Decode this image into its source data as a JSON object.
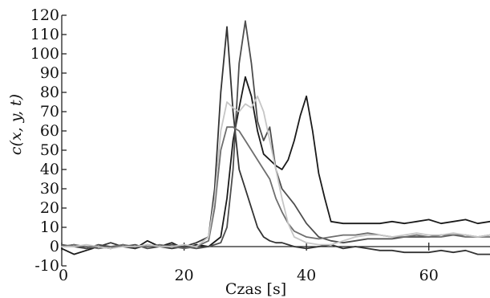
{
  "chart_data": {
    "type": "line",
    "xlabel": "Czas [s]",
    "ylabel": "c(x, y, t)",
    "xlim": [
      0,
      70
    ],
    "ylim": [
      -10,
      120
    ],
    "x_ticks": [
      0,
      20,
      40,
      60
    ],
    "y_ticks": [
      -10,
      0,
      10,
      20,
      30,
      40,
      50,
      60,
      70,
      80,
      90,
      100,
      110,
      120
    ],
    "grid": false,
    "legend": "none",
    "series": [
      {
        "color": "#1a1a1a",
        "x": [
          0,
          2,
          4,
          6,
          8,
          10,
          12,
          14,
          16,
          18,
          20,
          22,
          24,
          26,
          27,
          28,
          29,
          30,
          31,
          32,
          33,
          34,
          35,
          36,
          37,
          38,
          39,
          40,
          41,
          42,
          43,
          44,
          46,
          48,
          50,
          52,
          54,
          56,
          58,
          60,
          62,
          64,
          66,
          68,
          70
        ],
        "y": [
          -1,
          -4,
          -2,
          0,
          -1,
          1,
          -1,
          3,
          0,
          2,
          -1,
          1,
          0,
          5,
          25,
          55,
          72,
          88,
          78,
          60,
          48,
          45,
          42,
          40,
          45,
          55,
          68,
          78,
          60,
          38,
          25,
          13,
          12,
          12,
          12,
          12,
          13,
          12,
          13,
          14,
          12,
          13,
          14,
          12,
          13
        ]
      },
      {
        "color": "#333333",
        "x": [
          0,
          2,
          4,
          6,
          8,
          10,
          12,
          14,
          16,
          18,
          20,
          22,
          24,
          25,
          26,
          27,
          28,
          29,
          30,
          31,
          32,
          33,
          34,
          35,
          36,
          37,
          38,
          40,
          42,
          44,
          46,
          48,
          50,
          52,
          54,
          56,
          58,
          60,
          62,
          64,
          66,
          68,
          70
        ],
        "y": [
          0,
          1,
          -1,
          0,
          2,
          0,
          -1,
          1,
          0,
          -1,
          0,
          2,
          5,
          30,
          80,
          114,
          70,
          40,
          30,
          20,
          10,
          5,
          3,
          2,
          2,
          1,
          0,
          -1,
          0,
          1,
          -1,
          0,
          -1,
          -2,
          -2,
          -3,
          -3,
          -3,
          -2,
          -3,
          -2,
          -4,
          -4
        ]
      },
      {
        "color": "#4d4d4d",
        "x": [
          0,
          2,
          4,
          6,
          8,
          10,
          12,
          14,
          16,
          18,
          20,
          22,
          24,
          26,
          27,
          28,
          29,
          30,
          31,
          32,
          33,
          34,
          35,
          36,
          38,
          40,
          42,
          44,
          46,
          48,
          50,
          52,
          54,
          56,
          58,
          60,
          62,
          64,
          66,
          68,
          70
        ],
        "y": [
          1,
          0,
          -1,
          1,
          0,
          0,
          1,
          -1,
          0,
          1,
          0,
          -1,
          0,
          2,
          10,
          40,
          95,
          117,
          95,
          65,
          55,
          62,
          40,
          30,
          22,
          12,
          5,
          3,
          2,
          3,
          4,
          4,
          4,
          5,
          5,
          5,
          6,
          6,
          6,
          5,
          6
        ]
      },
      {
        "color": "#6e6e6e",
        "x": [
          0,
          2,
          4,
          6,
          8,
          10,
          12,
          14,
          16,
          18,
          20,
          22,
          24,
          25,
          26,
          27,
          28,
          29,
          30,
          31,
          32,
          33,
          34,
          35,
          36,
          37,
          38,
          40,
          42,
          44,
          46,
          48,
          50,
          52,
          54,
          56,
          58,
          60,
          62,
          64,
          66,
          68,
          70
        ],
        "y": [
          0,
          1,
          0,
          -1,
          0,
          1,
          0,
          0,
          1,
          0,
          -1,
          0,
          3,
          20,
          50,
          62,
          62,
          60,
          55,
          50,
          45,
          40,
          35,
          25,
          18,
          12,
          8,
          5,
          4,
          5,
          6,
          6,
          7,
          6,
          5,
          5,
          6,
          5,
          5,
          6,
          5,
          5,
          5
        ]
      },
      {
        "color": "#c6c6c6",
        "x": [
          0,
          2,
          4,
          6,
          8,
          10,
          12,
          14,
          16,
          18,
          20,
          22,
          24,
          25,
          26,
          27,
          28,
          29,
          30,
          31,
          32,
          33,
          34,
          35,
          36,
          37,
          38,
          40,
          42,
          44,
          46,
          48,
          50,
          52,
          54,
          56,
          58,
          60,
          62,
          64,
          66,
          68,
          70
        ],
        "y": [
          0,
          0,
          1,
          0,
          -1,
          0,
          0,
          1,
          0,
          0,
          1,
          0,
          5,
          25,
          60,
          75,
          72,
          70,
          74,
          72,
          78,
          70,
          55,
          40,
          25,
          12,
          5,
          2,
          1,
          1,
          3,
          5,
          6,
          6,
          5,
          6,
          7,
          6,
          6,
          7,
          6,
          5,
          6
        ]
      }
    ]
  }
}
